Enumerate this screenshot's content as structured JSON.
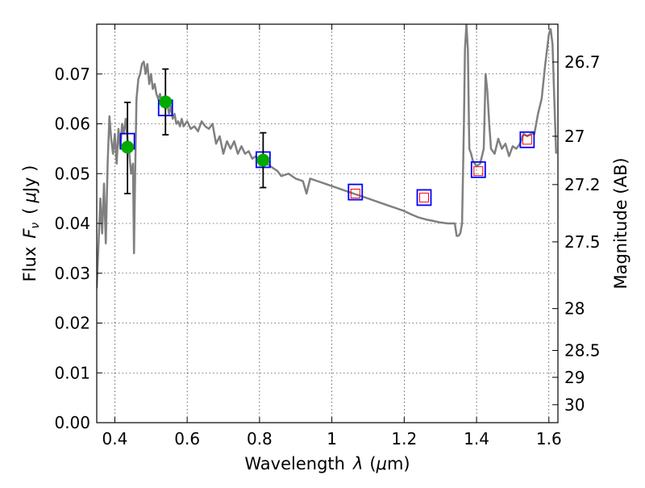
{
  "chart_data": {
    "type": "line",
    "title": "",
    "xlabel": {
      "prefix": "Wavelength",
      "symbol": "λ",
      "unit_open": "(",
      "unit_mu": "μ",
      "unit_rest": "m)"
    },
    "ylabel": {
      "prefix": "Flux",
      "symbol": "F",
      "subscript": "ν",
      "unit_open": "(",
      "unit_mu": "μ",
      "unit_rest": "Jy )"
    },
    "y2label": "Magnitude (AB)",
    "xlim": [
      0.35,
      1.625
    ],
    "ylim": [
      0.0,
      0.08
    ],
    "grid": true,
    "x_ticks": [
      {
        "value": 0.4,
        "label": "0.4"
      },
      {
        "value": 0.6,
        "label": "0.6"
      },
      {
        "value": 0.8,
        "label": "0.8"
      },
      {
        "value": 1.0,
        "label": "1"
      },
      {
        "value": 1.2,
        "label": "1.2"
      },
      {
        "value": 1.4,
        "label": "1.4"
      },
      {
        "value": 1.6,
        "label": "1.6"
      }
    ],
    "y_ticks": [
      {
        "value": 0.0,
        "label": "0.00"
      },
      {
        "value": 0.01,
        "label": "0.01"
      },
      {
        "value": 0.02,
        "label": "0.02"
      },
      {
        "value": 0.03,
        "label": "0.03"
      },
      {
        "value": 0.04,
        "label": "0.04"
      },
      {
        "value": 0.05,
        "label": "0.05"
      },
      {
        "value": 0.06,
        "label": "0.06"
      },
      {
        "value": 0.07,
        "label": "0.07"
      }
    ],
    "y2_ticks": [
      {
        "flux": 0.0724,
        "label": "26.7"
      },
      {
        "flux": 0.0575,
        "label": "27"
      },
      {
        "flux": 0.0478,
        "label": "27.2"
      },
      {
        "flux": 0.0363,
        "label": "27.5"
      },
      {
        "flux": 0.0229,
        "label": "28"
      },
      {
        "flux": 0.0145,
        "label": "28.5"
      },
      {
        "flux": 0.0091,
        "label": "29"
      },
      {
        "flux": 0.0036,
        "label": "30"
      }
    ],
    "series": [
      {
        "kind": "line",
        "color": "#808080",
        "points": [
          [
            0.35,
            0.027
          ],
          [
            0.36,
            0.045
          ],
          [
            0.365,
            0.038
          ],
          [
            0.37,
            0.048
          ],
          [
            0.375,
            0.036
          ],
          [
            0.38,
            0.052
          ],
          [
            0.385,
            0.0615
          ],
          [
            0.39,
            0.057
          ],
          [
            0.395,
            0.054
          ],
          [
            0.4,
            0.058
          ],
          [
            0.405,
            0.052
          ],
          [
            0.41,
            0.059
          ],
          [
            0.415,
            0.055
          ],
          [
            0.42,
            0.06
          ],
          [
            0.425,
            0.058
          ],
          [
            0.43,
            0.061
          ],
          [
            0.435,
            0.057
          ],
          [
            0.44,
            0.054
          ],
          [
            0.445,
            0.05
          ],
          [
            0.45,
            0.052
          ],
          [
            0.453,
            0.034
          ],
          [
            0.456,
            0.05
          ],
          [
            0.46,
            0.065
          ],
          [
            0.465,
            0.069
          ],
          [
            0.47,
            0.07
          ],
          [
            0.475,
            0.072
          ],
          [
            0.48,
            0.0725
          ],
          [
            0.485,
            0.07
          ],
          [
            0.49,
            0.072
          ],
          [
            0.495,
            0.068
          ],
          [
            0.5,
            0.07
          ],
          [
            0.505,
            0.067
          ],
          [
            0.51,
            0.068
          ],
          [
            0.515,
            0.066
          ],
          [
            0.52,
            0.065
          ],
          [
            0.525,
            0.066
          ],
          [
            0.53,
            0.064
          ],
          [
            0.535,
            0.065
          ],
          [
            0.54,
            0.063
          ],
          [
            0.545,
            0.064
          ],
          [
            0.55,
            0.062
          ],
          [
            0.555,
            0.0635
          ],
          [
            0.56,
            0.061
          ],
          [
            0.565,
            0.062
          ],
          [
            0.57,
            0.06
          ],
          [
            0.575,
            0.0605
          ],
          [
            0.58,
            0.0595
          ],
          [
            0.585,
            0.061
          ],
          [
            0.59,
            0.0595
          ],
          [
            0.6,
            0.0605
          ],
          [
            0.61,
            0.059
          ],
          [
            0.62,
            0.0595
          ],
          [
            0.63,
            0.0585
          ],
          [
            0.64,
            0.0605
          ],
          [
            0.65,
            0.0595
          ],
          [
            0.66,
            0.059
          ],
          [
            0.67,
            0.06
          ],
          [
            0.68,
            0.056
          ],
          [
            0.69,
            0.0575
          ],
          [
            0.7,
            0.054
          ],
          [
            0.71,
            0.0565
          ],
          [
            0.72,
            0.055
          ],
          [
            0.73,
            0.0565
          ],
          [
            0.74,
            0.054
          ],
          [
            0.75,
            0.0555
          ],
          [
            0.76,
            0.054
          ],
          [
            0.77,
            0.0545
          ],
          [
            0.78,
            0.053
          ],
          [
            0.79,
            0.0535
          ],
          [
            0.8,
            0.052
          ],
          [
            0.81,
            0.053
          ],
          [
            0.82,
            0.052
          ],
          [
            0.83,
            0.0515
          ],
          [
            0.84,
            0.051
          ],
          [
            0.85,
            0.0505
          ],
          [
            0.86,
            0.0495
          ],
          [
            0.88,
            0.05
          ],
          [
            0.9,
            0.049
          ],
          [
            0.92,
            0.0485
          ],
          [
            0.93,
            0.046
          ],
          [
            0.94,
            0.049
          ],
          [
            0.96,
            0.0485
          ],
          [
            0.98,
            0.048
          ],
          [
            1.0,
            0.0475
          ],
          [
            1.02,
            0.047
          ],
          [
            1.04,
            0.0465
          ],
          [
            1.06,
            0.046
          ],
          [
            1.08,
            0.0455
          ],
          [
            1.1,
            0.045
          ],
          [
            1.12,
            0.0445
          ],
          [
            1.14,
            0.044
          ],
          [
            1.16,
            0.0435
          ],
          [
            1.18,
            0.043
          ],
          [
            1.2,
            0.0425
          ],
          [
            1.22,
            0.0418
          ],
          [
            1.24,
            0.0412
          ],
          [
            1.26,
            0.0408
          ],
          [
            1.28,
            0.0405
          ],
          [
            1.3,
            0.0402
          ],
          [
            1.32,
            0.04
          ],
          [
            1.34,
            0.04
          ],
          [
            1.345,
            0.0375
          ],
          [
            1.35,
            0.0375
          ],
          [
            1.355,
            0.038
          ],
          [
            1.36,
            0.04
          ],
          [
            1.365,
            0.06
          ],
          [
            1.368,
            0.075
          ],
          [
            1.372,
            0.08
          ],
          [
            1.376,
            0.075
          ],
          [
            1.38,
            0.055
          ],
          [
            1.385,
            0.054
          ],
          [
            1.39,
            0.0525
          ],
          [
            1.4,
            0.0515
          ],
          [
            1.41,
            0.052
          ],
          [
            1.42,
            0.055
          ],
          [
            1.425,
            0.07
          ],
          [
            1.43,
            0.0665
          ],
          [
            1.435,
            0.06
          ],
          [
            1.44,
            0.055
          ],
          [
            1.45,
            0.054
          ],
          [
            1.46,
            0.057
          ],
          [
            1.47,
            0.055
          ],
          [
            1.48,
            0.056
          ],
          [
            1.49,
            0.0535
          ],
          [
            1.5,
            0.0555
          ],
          [
            1.51,
            0.055
          ],
          [
            1.52,
            0.056
          ],
          [
            1.53,
            0.058
          ],
          [
            1.54,
            0.0575
          ],
          [
            1.55,
            0.058
          ],
          [
            1.56,
            0.058
          ],
          [
            1.57,
            0.062
          ],
          [
            1.58,
            0.065
          ],
          [
            1.59,
            0.072
          ],
          [
            1.6,
            0.078
          ],
          [
            1.605,
            0.079
          ],
          [
            1.61,
            0.076
          ],
          [
            1.615,
            0.065
          ],
          [
            1.62,
            0.054
          ]
        ]
      },
      {
        "kind": "squares",
        "color": "#0000ff",
        "points": [
          [
            0.435,
            0.0565
          ],
          [
            0.54,
            0.0632
          ],
          [
            0.81,
            0.0528
          ],
          [
            1.065,
            0.0463
          ],
          [
            1.255,
            0.0452
          ],
          [
            1.405,
            0.0508
          ],
          [
            1.54,
            0.0568
          ]
        ]
      },
      {
        "kind": "small_squares",
        "color": "#ff0000",
        "points": [
          [
            1.065,
            0.046
          ],
          [
            1.255,
            0.0452
          ],
          [
            1.405,
            0.0505
          ],
          [
            1.54,
            0.0568
          ]
        ]
      },
      {
        "kind": "errorbar_points",
        "color": "#00aa00",
        "err_color": "#000000",
        "points": [
          {
            "x": 0.435,
            "y": 0.0553,
            "lo": 0.046,
            "hi": 0.0643
          },
          {
            "x": 0.54,
            "y": 0.0644,
            "lo": 0.0578,
            "hi": 0.071
          },
          {
            "x": 0.81,
            "y": 0.0527,
            "lo": 0.0472,
            "hi": 0.0582
          }
        ]
      }
    ]
  }
}
